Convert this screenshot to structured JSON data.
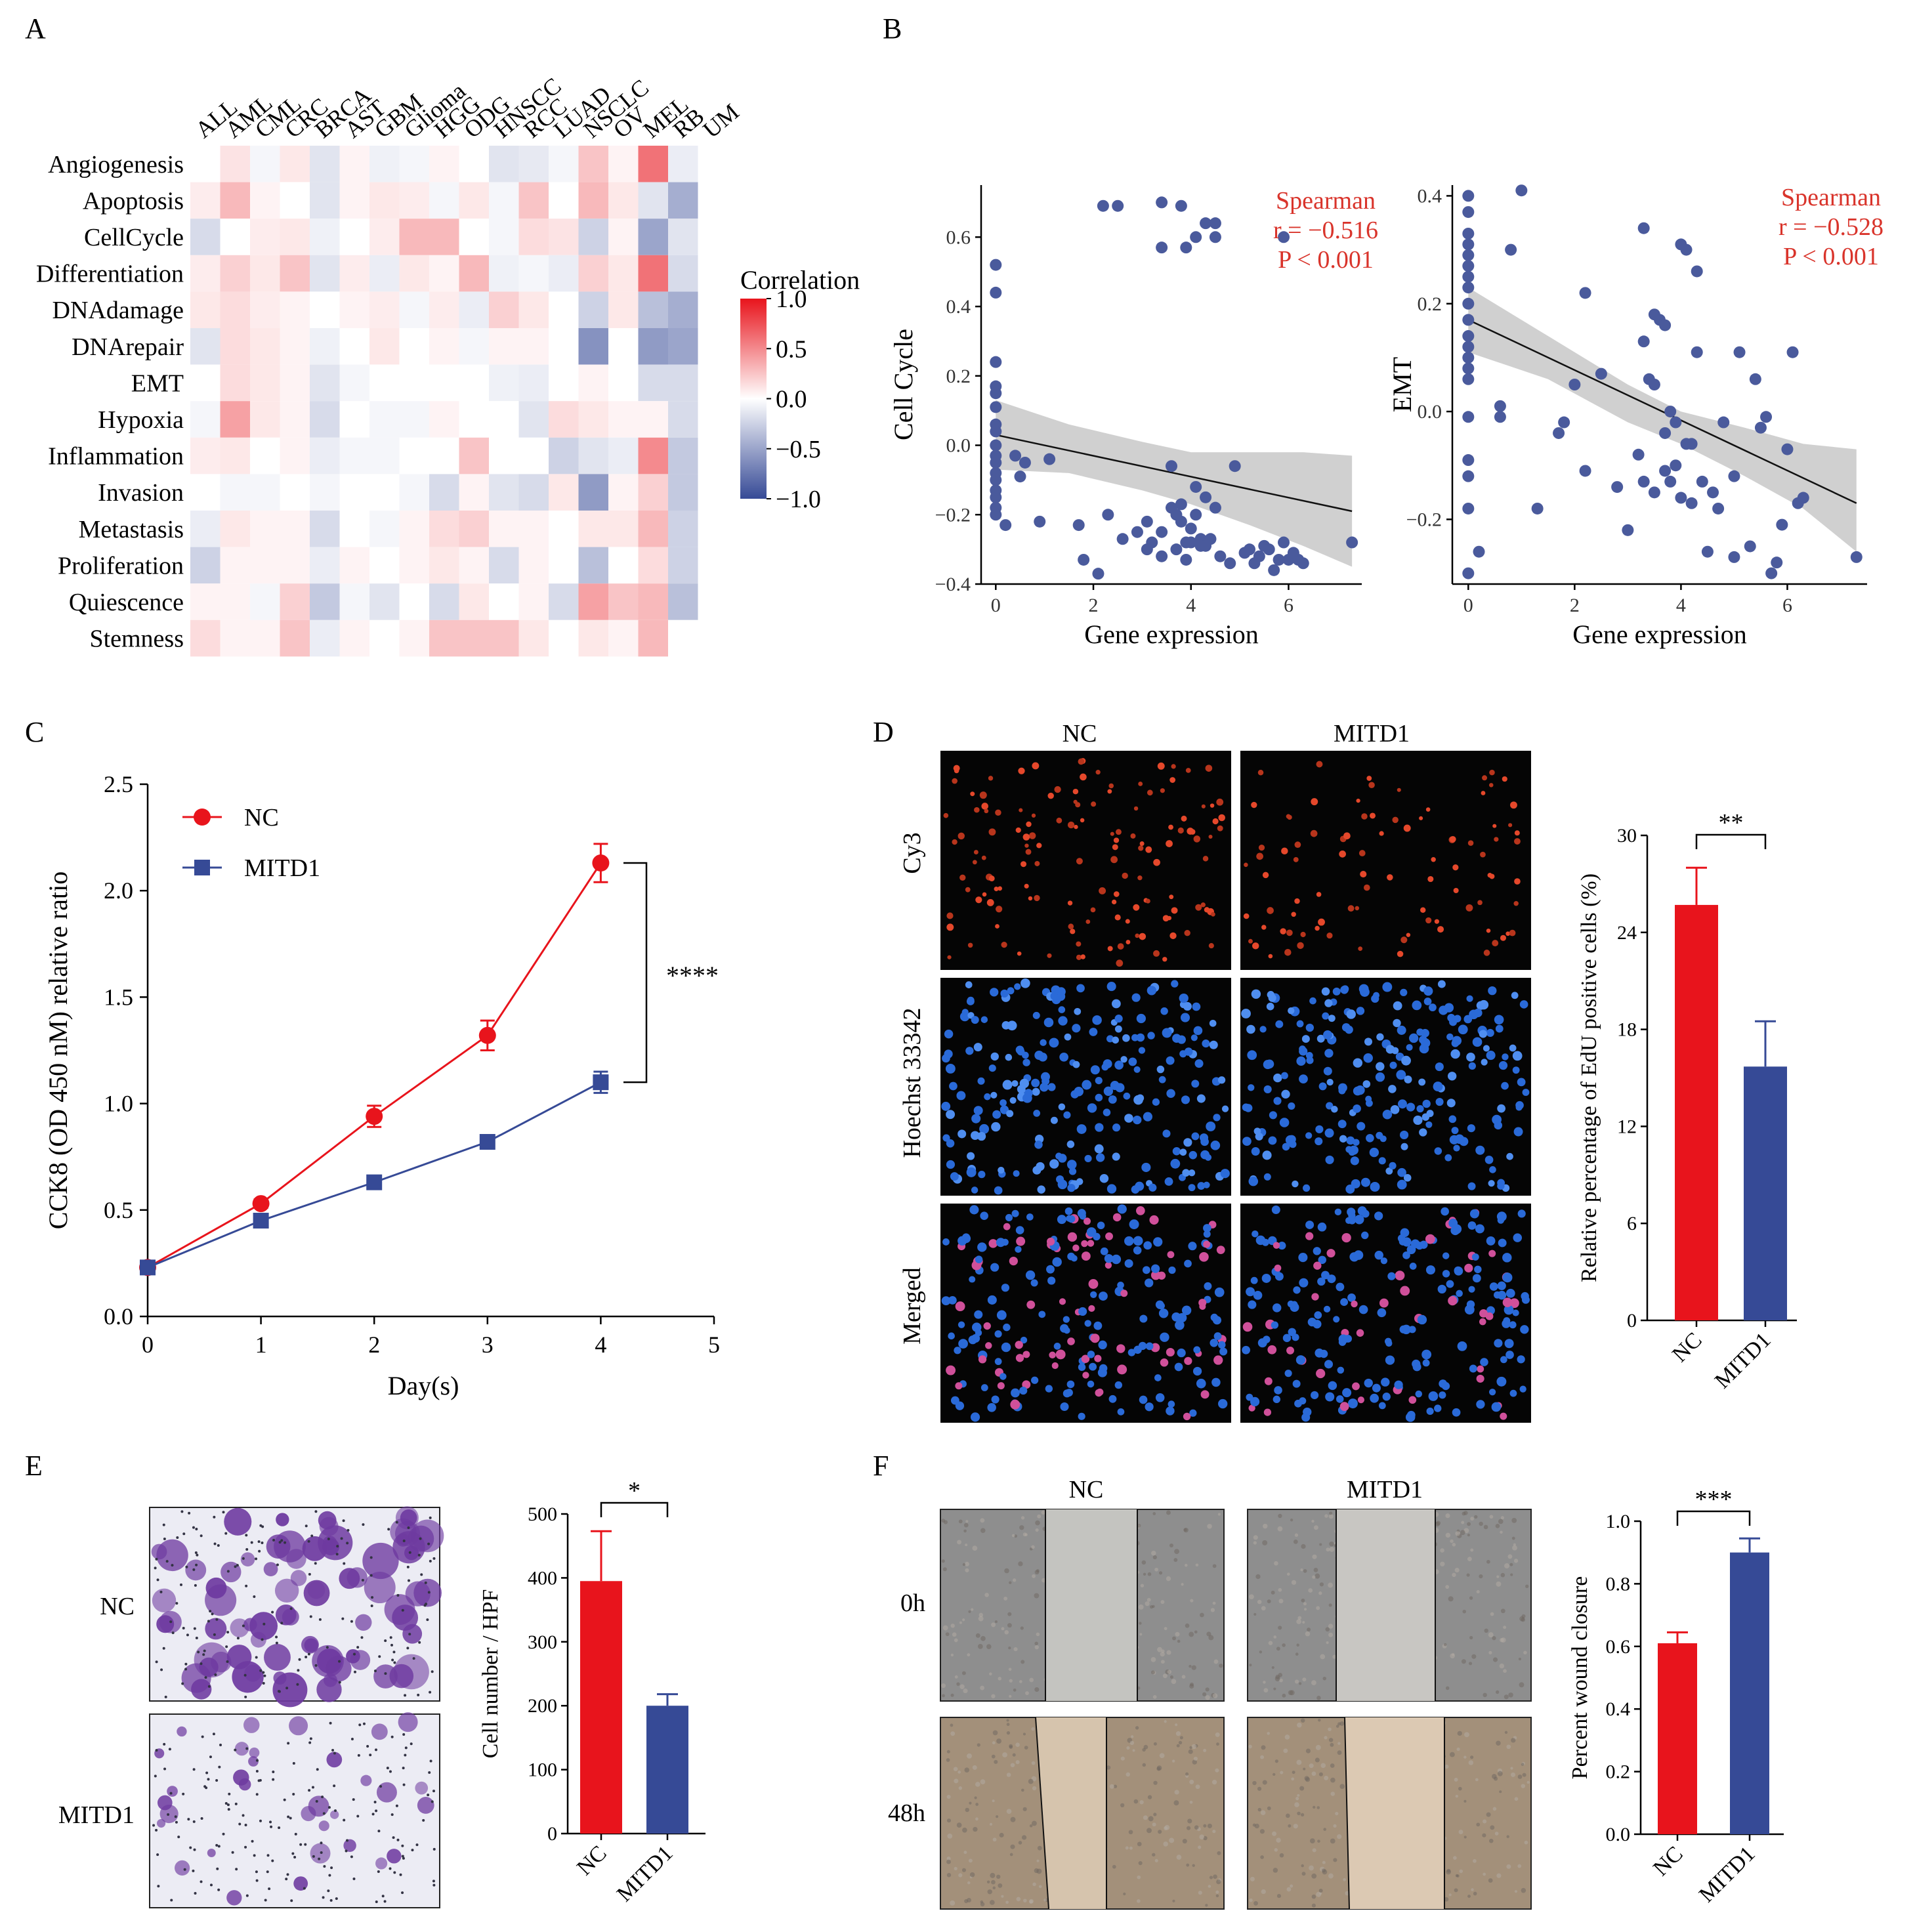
{
  "colors": {
    "red": "#e8141c",
    "blue": "#364a96",
    "annot_red": "#d9342b",
    "scatter_dot": "#4a5a9c",
    "ci_band": "#c8c8c8",
    "micro_black": "#050505",
    "wound_gray": "#8e8e8e",
    "wound_brown": "#a3907a",
    "transwell_bg": "#ececf4",
    "transwell_purple": "#6e3aa0"
  },
  "panels": {
    "A": {
      "label": "A"
    },
    "B": {
      "label": "B"
    },
    "C": {
      "label": "C"
    },
    "D": {
      "label": "D",
      "col_labels": [
        "NC",
        "MITD1"
      ],
      "row_labels": [
        "Cy3",
        "Hoechst 33342",
        "Merged"
      ]
    },
    "E": {
      "label": "E",
      "row_labels": [
        "NC",
        "MITD1"
      ]
    },
    "F": {
      "label": "F",
      "col_labels": [
        "NC",
        "MITD1"
      ],
      "row_labels": [
        "0h",
        "48h"
      ]
    }
  },
  "chart_data": [
    {
      "id": "A-heatmap",
      "type": "heatmap",
      "columns": [
        "ALL",
        "AML",
        "CML",
        "CRC",
        "BRCA",
        "AST",
        "GBM",
        "Glioma",
        "HGG",
        "ODG",
        "HNSCC",
        "RCC",
        "LUAD",
        "NSCLC",
        "OV",
        "MEL",
        "RB",
        "UM"
      ],
      "rows": [
        "Angiogenesis",
        "Apoptosis",
        "CellCycle",
        "Differentiation",
        "DNAdamage",
        "DNArepair",
        "EMT",
        "Hypoxia",
        "Inflammation",
        "Invasion",
        "Metastasis",
        "Proliferation",
        "Quiescence",
        "Stemness"
      ],
      "values": [
        [
          0.0,
          0.12,
          -0.05,
          0.1,
          -0.15,
          0.05,
          -0.08,
          -0.05,
          0.05,
          0.0,
          -0.15,
          -0.12,
          -0.05,
          0.25,
          0.05,
          0.6,
          -0.1,
          0.0
        ],
        [
          0.08,
          0.3,
          0.05,
          0.0,
          -0.15,
          0.05,
          0.1,
          0.08,
          -0.05,
          0.1,
          -0.05,
          0.25,
          0.0,
          0.3,
          0.1,
          -0.15,
          -0.45,
          0.0
        ],
        [
          -0.2,
          0.0,
          0.08,
          0.1,
          -0.08,
          0.0,
          0.08,
          0.3,
          0.3,
          0.0,
          -0.05,
          0.15,
          0.12,
          -0.25,
          0.05,
          -0.5,
          -0.15,
          0.0
        ],
        [
          0.08,
          0.2,
          0.1,
          0.25,
          -0.15,
          0.08,
          -0.1,
          0.1,
          0.05,
          0.3,
          -0.08,
          -0.05,
          -0.1,
          0.2,
          0.1,
          0.6,
          -0.2,
          0.0
        ],
        [
          0.1,
          0.15,
          0.08,
          0.05,
          0.0,
          0.05,
          0.08,
          -0.05,
          0.08,
          -0.1,
          0.2,
          0.1,
          0.0,
          -0.25,
          0.1,
          -0.35,
          -0.45,
          0.0
        ],
        [
          -0.15,
          0.15,
          0.1,
          0.05,
          -0.08,
          0.0,
          0.1,
          0.0,
          0.05,
          -0.05,
          0.05,
          0.05,
          0.0,
          -0.6,
          0.0,
          -0.55,
          -0.5,
          0.0
        ],
        [
          0.0,
          0.15,
          0.1,
          0.05,
          -0.15,
          -0.05,
          0.0,
          0.0,
          0.0,
          0.0,
          -0.08,
          -0.1,
          0.0,
          0.05,
          0.0,
          -0.2,
          -0.2,
          0.0
        ],
        [
          -0.05,
          0.4,
          0.1,
          0.05,
          -0.2,
          0.0,
          -0.05,
          -0.05,
          0.05,
          0.0,
          0.0,
          -0.15,
          0.15,
          0.1,
          0.05,
          0.05,
          -0.2,
          0.0
        ],
        [
          0.08,
          0.1,
          0.0,
          0.05,
          -0.1,
          -0.05,
          -0.05,
          0.0,
          0.0,
          0.25,
          0.0,
          0.0,
          -0.25,
          -0.15,
          -0.1,
          0.5,
          -0.3,
          0.0
        ],
        [
          0.0,
          -0.05,
          -0.05,
          0.0,
          -0.05,
          0.0,
          0.0,
          -0.05,
          -0.2,
          0.05,
          -0.15,
          -0.2,
          0.1,
          -0.55,
          0.05,
          0.2,
          -0.3,
          0.0
        ],
        [
          -0.1,
          0.1,
          0.05,
          0.05,
          -0.2,
          0.0,
          -0.05,
          0.05,
          0.15,
          0.2,
          0.05,
          0.05,
          0.0,
          0.1,
          0.1,
          0.3,
          -0.25,
          0.0
        ],
        [
          -0.25,
          0.05,
          0.05,
          0.05,
          -0.1,
          0.05,
          0.0,
          0.05,
          0.1,
          0.05,
          -0.2,
          0.05,
          0.0,
          -0.35,
          0.0,
          0.15,
          -0.25,
          0.0
        ],
        [
          0.05,
          0.05,
          -0.05,
          0.2,
          -0.3,
          -0.05,
          -0.15,
          0.0,
          -0.2,
          0.1,
          0.0,
          0.05,
          -0.2,
          0.4,
          0.25,
          0.3,
          -0.35,
          0.0
        ],
        [
          0.15,
          0.05,
          0.05,
          0.25,
          -0.1,
          0.05,
          0.0,
          0.05,
          0.25,
          0.25,
          0.25,
          0.1,
          0.0,
          0.1,
          0.05,
          0.3,
          0.0,
          0.0
        ]
      ],
      "legend_title": "Correlation",
      "colorbar_ticks": [
        "1.0",
        "0.5",
        "0.0",
        "−0.5",
        "−1.0"
      ],
      "colorbar_values": [
        1.0,
        0.5,
        0.0,
        -0.5,
        -1.0
      ],
      "range": [
        -1,
        1
      ]
    },
    {
      "id": "B-left",
      "type": "scatter",
      "xlabel": "Gene expression",
      "ylabel": "Cell Cycle",
      "xlim": [
        -0.3,
        7.5
      ],
      "ylim": [
        -0.4,
        0.75
      ],
      "xticks": [
        0,
        2,
        4,
        6
      ],
      "xtick_labels": [
        "0",
        "2",
        "4",
        "6"
      ],
      "yticks": [
        -0.4,
        -0.2,
        0.0,
        0.2,
        0.4,
        0.6
      ],
      "ytick_labels": [
        "−0.4",
        "−0.2",
        "0.0",
        "0.2",
        "0.4",
        "0.6"
      ],
      "annotation": [
        "Spearman",
        "r = −0.516",
        "P < 0.001"
      ],
      "fit": {
        "x": [
          0,
          7.3
        ],
        "y": [
          0.03,
          -0.19
        ]
      },
      "ci_upper": [
        [
          0,
          0.13
        ],
        [
          1.5,
          0.06
        ],
        [
          3,
          0.01
        ],
        [
          4,
          -0.02
        ],
        [
          5.2,
          -0.02
        ],
        [
          6.3,
          -0.02
        ],
        [
          7.3,
          -0.03
        ]
      ],
      "ci_lower": [
        [
          7.3,
          -0.35
        ],
        [
          6.3,
          -0.29
        ],
        [
          5.2,
          -0.23
        ],
        [
          4,
          -0.17
        ],
        [
          3,
          -0.13
        ],
        [
          1.5,
          -0.08
        ],
        [
          0,
          -0.07
        ]
      ],
      "x": [
        0,
        0,
        0,
        0,
        0,
        0,
        0,
        0,
        0,
        0,
        0,
        0,
        0,
        0,
        0,
        0,
        0,
        0.2,
        0.4,
        0.5,
        0.6,
        0.9,
        1.1,
        1.7,
        1.8,
        2.1,
        2.3,
        2.6,
        2.9,
        3.1,
        3.1,
        3.2,
        3.4,
        3.4,
        3.6,
        3.6,
        3.7,
        3.7,
        3.8,
        3.8,
        3.9,
        3.9,
        4.0,
        4.0,
        4.1,
        4.1,
        4.2,
        4.2,
        4.3,
        4.3,
        4.4,
        4.5,
        4.6,
        4.8,
        4.9,
        5.1,
        5.2,
        5.3,
        5.4,
        5.5,
        5.6,
        5.7,
        5.8,
        5.9,
        6.0,
        6.1,
        6.2,
        6.3,
        7.3,
        4.3,
        4.5,
        3.8,
        3.9,
        4.1,
        3.4,
        2.2,
        2.5,
        3.4,
        4.5,
        5.9
      ],
      "y": [
        0.52,
        0.44,
        0.24,
        0.17,
        0.15,
        0.11,
        0.06,
        0.04,
        0.0,
        -0.03,
        -0.05,
        -0.08,
        -0.1,
        -0.13,
        -0.15,
        -0.18,
        -0.2,
        -0.23,
        -0.03,
        -0.09,
        -0.05,
        -0.22,
        -0.04,
        -0.23,
        -0.33,
        -0.37,
        -0.2,
        -0.27,
        -0.25,
        -0.22,
        -0.3,
        -0.28,
        -0.25,
        -0.32,
        -0.18,
        -0.06,
        -0.2,
        -0.3,
        -0.17,
        -0.22,
        -0.28,
        -0.33,
        -0.24,
        -0.28,
        -0.12,
        -0.2,
        -0.27,
        -0.29,
        -0.15,
        -0.29,
        -0.27,
        -0.18,
        -0.32,
        -0.34,
        -0.06,
        -0.31,
        -0.3,
        -0.34,
        -0.32,
        -0.29,
        -0.3,
        -0.36,
        -0.33,
        -0.28,
        -0.33,
        -0.31,
        -0.33,
        -0.34,
        -0.28,
        0.64,
        0.64,
        0.69,
        0.57,
        0.6,
        0.7,
        0.69,
        0.69,
        0.57,
        0.6,
        0.6
      ]
    },
    {
      "id": "B-right",
      "type": "scatter",
      "xlabel": "Gene expression",
      "ylabel": "EMT",
      "xlim": [
        -0.3,
        7.5
      ],
      "ylim": [
        -0.32,
        0.42
      ],
      "xticks": [
        0,
        2,
        4,
        6
      ],
      "xtick_labels": [
        "0",
        "2",
        "4",
        "6"
      ],
      "yticks": [
        -0.2,
        0.0,
        0.2,
        0.4
      ],
      "ytick_labels": [
        "−0.2",
        "0.0",
        "0.2",
        "0.4"
      ],
      "annotation": [
        "Spearman",
        "r = −0.528",
        "P < 0.001"
      ],
      "fit": {
        "x": [
          0,
          7.3
        ],
        "y": [
          0.17,
          -0.17
        ]
      },
      "ci_upper": [
        [
          0,
          0.23
        ],
        [
          1.5,
          0.14
        ],
        [
          3,
          0.05
        ],
        [
          4,
          0.0
        ],
        [
          5.2,
          -0.03
        ],
        [
          6.3,
          -0.06
        ],
        [
          7.3,
          -0.07
        ]
      ],
      "ci_lower": [
        [
          7.3,
          -0.26
        ],
        [
          6.3,
          -0.18
        ],
        [
          5.2,
          -0.12
        ],
        [
          4,
          -0.06
        ],
        [
          3,
          -0.02
        ],
        [
          1.5,
          0.06
        ],
        [
          0,
          0.11
        ]
      ],
      "x": [
        0,
        0,
        0,
        0,
        0,
        0,
        0,
        0,
        0,
        0,
        0,
        0,
        0,
        0,
        0,
        0,
        0,
        0,
        0,
        0,
        0.2,
        0.6,
        0.8,
        1.0,
        0.6,
        1.3,
        1.7,
        1.8,
        2.0,
        2.2,
        2.5,
        2.8,
        3.0,
        3.2,
        3.3,
        3.3,
        3.4,
        3.5,
        3.5,
        3.6,
        3.7,
        3.7,
        3.8,
        3.8,
        3.9,
        3.9,
        4.0,
        4.1,
        4.1,
        4.2,
        4.2,
        4.3,
        4.4,
        4.5,
        4.6,
        4.7,
        4.8,
        5.0,
        5.0,
        5.1,
        5.3,
        5.4,
        5.5,
        5.6,
        5.7,
        5.8,
        5.9,
        6.0,
        6.1,
        6.2,
        6.3,
        7.3,
        3.3,
        3.5,
        4.0,
        4.3,
        3.7,
        2.2
      ],
      "y": [
        0.4,
        0.37,
        0.33,
        0.31,
        0.29,
        0.27,
        0.25,
        0.23,
        0.2,
        0.17,
        0.14,
        0.12,
        0.1,
        0.08,
        0.06,
        -0.01,
        -0.09,
        -0.12,
        -0.18,
        -0.3,
        -0.26,
        0.01,
        0.3,
        0.41,
        -0.01,
        -0.18,
        -0.04,
        -0.02,
        0.05,
        -0.11,
        0.07,
        -0.14,
        -0.22,
        -0.08,
        -0.13,
        0.13,
        0.06,
        -0.15,
        0.05,
        0.17,
        -0.04,
        -0.11,
        -0.13,
        0.0,
        -0.02,
        -0.1,
        -0.16,
        -0.06,
        0.3,
        -0.17,
        -0.06,
        0.11,
        -0.13,
        -0.26,
        -0.15,
        -0.18,
        -0.02,
        -0.27,
        -0.12,
        0.11,
        -0.25,
        0.06,
        -0.03,
        -0.01,
        -0.3,
        -0.28,
        -0.21,
        -0.07,
        0.11,
        -0.17,
        -0.16,
        -0.27,
        0.34,
        0.18,
        0.31,
        0.26,
        0.16,
        0.22
      ]
    },
    {
      "id": "C-line",
      "type": "line",
      "xlabel": "Day(s)",
      "ylabel": "CCK8 (OD 450 nM) relative ratio",
      "xlim": [
        0,
        5
      ],
      "ylim": [
        0,
        2.5
      ],
      "x": [
        0,
        1,
        2,
        3,
        4
      ],
      "xticks": [
        "0",
        "1",
        "2",
        "3",
        "4",
        "5"
      ],
      "yticks": [
        "0.0",
        "0.5",
        "1.0",
        "1.5",
        "2.0",
        "2.5"
      ],
      "series": [
        {
          "name": "NC",
          "values": [
            0.23,
            0.53,
            0.94,
            1.32,
            2.13
          ],
          "errors": [
            0.02,
            0.02,
            0.05,
            0.07,
            0.09
          ]
        },
        {
          "name": "MITD1",
          "values": [
            0.23,
            0.45,
            0.63,
            0.82,
            1.1
          ],
          "errors": [
            0.02,
            0.02,
            0.02,
            0.02,
            0.05
          ]
        }
      ],
      "significance": "****"
    },
    {
      "id": "D-bar",
      "type": "bar",
      "ylabel": "Relative percentage of EdU positive cells (%)",
      "categories": [
        "NC",
        "MITD1"
      ],
      "values": [
        25.7,
        15.7
      ],
      "errors": [
        2.3,
        2.8
      ],
      "ylim": [
        0,
        30
      ],
      "yticks": [
        "0",
        "6",
        "12",
        "18",
        "24",
        "30"
      ],
      "significance": "**"
    },
    {
      "id": "E-bar",
      "type": "bar",
      "ylabel": "Cell number / HPF",
      "categories": [
        "NC",
        "MITD1"
      ],
      "values": [
        395,
        200
      ],
      "errors": [
        78,
        18
      ],
      "ylim": [
        0,
        500
      ],
      "yticks": [
        "0",
        "100",
        "200",
        "300",
        "400",
        "500"
      ],
      "significance": "*"
    },
    {
      "id": "F-bar",
      "type": "bar",
      "ylabel": "Percent wound closure",
      "categories": [
        "NC",
        "MITD1"
      ],
      "values": [
        0.61,
        0.9
      ],
      "errors": [
        0.035,
        0.045
      ],
      "ylim": [
        0,
        1.0
      ],
      "yticks": [
        "0.0",
        "0.2",
        "0.4",
        "0.6",
        "0.8",
        "1.0"
      ],
      "significance": "***"
    }
  ]
}
